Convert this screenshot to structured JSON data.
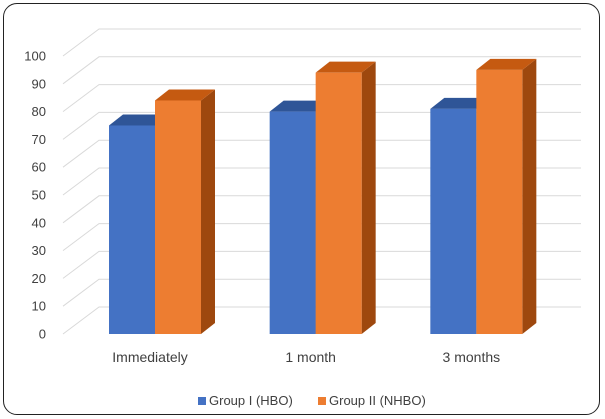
{
  "chart_data": {
    "type": "bar",
    "style": "3d-clustered-column",
    "categories": [
      "Immediately",
      "1 month",
      "3 months"
    ],
    "series": [
      {
        "name": "Group I (HBO)",
        "values": [
          75,
          80,
          81
        ]
      },
      {
        "name": "Group II (NHBO)",
        "values": [
          84,
          94,
          95
        ]
      }
    ],
    "ylim": [
      0,
      100
    ],
    "yticks": [
      0,
      10,
      20,
      30,
      40,
      50,
      60,
      70,
      80,
      90,
      100
    ],
    "grid": true,
    "legend": "bottom",
    "colors": {
      "series": [
        "#4472c4",
        "#ed7d31"
      ],
      "series_top": [
        "#2f5597",
        "#c55a11"
      ],
      "series_side": [
        "#264478",
        "#9e480e"
      ],
      "grid": "#d9d9d9"
    }
  }
}
